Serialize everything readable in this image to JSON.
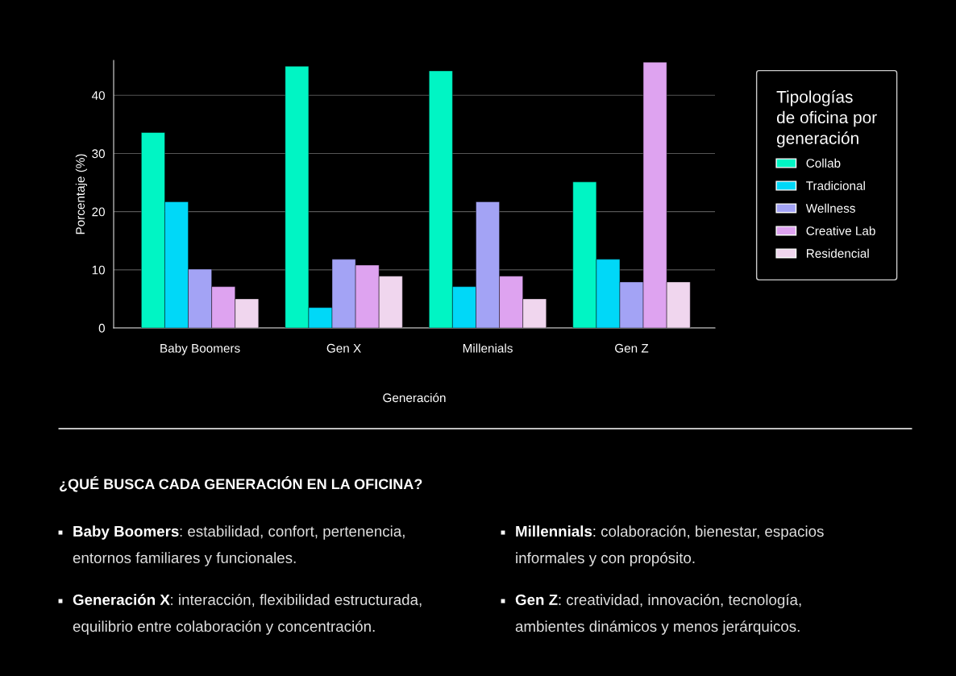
{
  "chart_data": {
    "type": "bar",
    "categories": [
      "Baby Boomers",
      "Gen X",
      "Millenials",
      "Gen Z"
    ],
    "xlabel": "Generación",
    "ylabel": "Porcentaje (%)",
    "legend_title": "Tipologías\nde oficina por\ngeneración",
    "series": [
      {
        "name": "Collab",
        "color": "#00f5c4",
        "values": [
          33.6,
          45.0,
          44.2,
          25.1
        ]
      },
      {
        "name": "Tradicional",
        "color": "#00d8f8",
        "values": [
          21.7,
          3.5,
          7.1,
          11.8
        ]
      },
      {
        "name": "Wellness",
        "color": "#a3a3f5",
        "values": [
          10.1,
          11.8,
          21.7,
          7.9
        ]
      },
      {
        "name": "Creative Lab",
        "color": "#dea3f0",
        "values": [
          7.1,
          10.8,
          8.9,
          45.7
        ]
      },
      {
        "name": "Residencial",
        "color": "#f0d6ee",
        "values": [
          5.0,
          8.9,
          5.0,
          7.9
        ]
      }
    ],
    "ylim": [
      0,
      46
    ],
    "yticks": [
      0,
      10,
      20,
      30,
      40
    ],
    "grid": "y",
    "legend": "right",
    "annotations": [
      "¿QUÉ BUSCA CADA GENERACIÓN EN LA OFICINA?",
      "Baby Boomers: estabilidad, confort, pertenencia,\nentornos familiares y funcionales.",
      "Generación X: interacción, flexibilidad estructurada,\nequilibrio entre colaboración y concentración.",
      "Millennials: colaboración, bienestar, espacios\ninformales y con propósito.",
      "Gen Z: creatividad, innovación, tecnología,\nambientes dinámicos y menos jerárquicos."
    ]
  }
}
